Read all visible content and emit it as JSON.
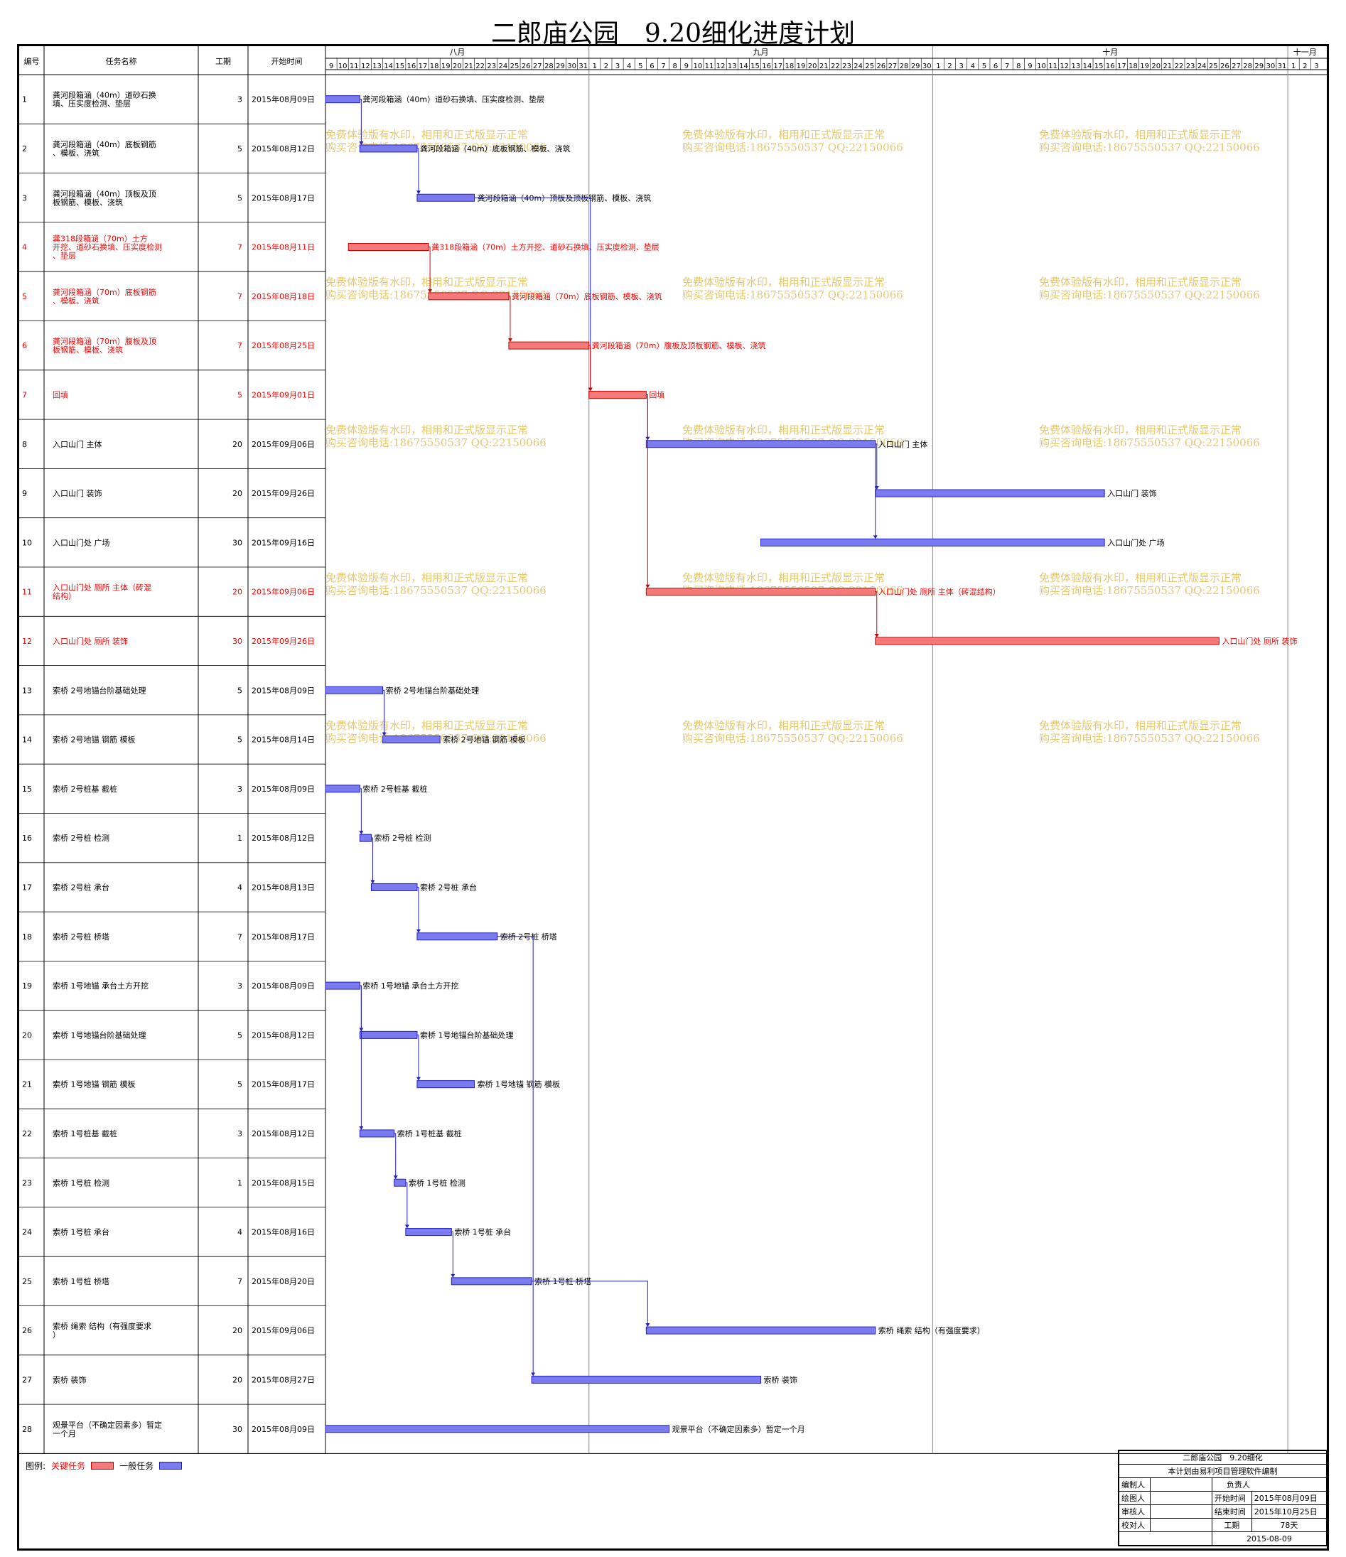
{
  "title": "二郎庙公园　9.20细化进度计划",
  "columns": {
    "id": "编号",
    "name": "任务名称",
    "duration": "工期",
    "start": "开始时间"
  },
  "months": [
    {
      "label": "八月",
      "days": [
        9,
        10,
        11,
        12,
        13,
        14,
        15,
        16,
        17,
        18,
        19,
        20,
        21,
        22,
        23,
        24,
        25,
        26,
        27,
        28,
        29,
        30,
        31
      ]
    },
    {
      "label": "九月",
      "days": [
        1,
        2,
        3,
        4,
        5,
        6,
        7,
        8,
        9,
        10,
        11,
        12,
        13,
        14,
        15,
        16,
        17,
        18,
        19,
        20,
        21,
        22,
        23,
        24,
        25,
        26,
        27,
        28,
        29,
        30
      ]
    },
    {
      "label": "十月",
      "days": [
        1,
        2,
        3,
        4,
        5,
        6,
        7,
        8,
        9,
        10,
        11,
        12,
        13,
        14,
        15,
        16,
        17,
        18,
        19,
        20,
        21,
        22,
        23,
        24,
        25,
        26,
        27,
        28,
        29,
        30,
        31
      ]
    },
    {
      "label": "十一月",
      "days": [
        1,
        2,
        3
      ]
    }
  ],
  "colors": {
    "critical_fill": "#f47a7a",
    "critical_border": "#cc0000",
    "normal_fill": "#7b7bf0",
    "normal_border": "#2020c0",
    "critical_text": "#ff0000",
    "watermark": "#e6c86e"
  },
  "chart_data": {
    "type": "gantt",
    "title": "二郎庙公园　9.20细化进度计划",
    "tasks": [
      {
        "id": "1",
        "name": "龚河段箱涵（40m）道砂石换填、压实度检测、垫层",
        "duration": 3,
        "start": "2015年08月09日",
        "critical": false,
        "label": "龚河段箱涵（40m）道砂石换填、压实度检测、垫层"
      },
      {
        "id": "2",
        "name": "龚河段箱涵（40m）底板钢筋、模板、浇筑",
        "duration": 5,
        "start": "2015年08月12日",
        "critical": false,
        "label": "龚河段箱涵（40m）底板钢筋、模板、浇筑"
      },
      {
        "id": "3",
        "name": "龚河段箱涵（40m）顶板及顶板钢筋、模板、浇筑",
        "duration": 5,
        "start": "2015年08月17日",
        "critical": false,
        "label": "龚河段箱涵（40m）顶板及顶板钢筋、模板、浇筑"
      },
      {
        "id": "4",
        "name": "龚318段箱涵（70m）土方开挖、道砂石换填、压实度检测、垫层",
        "duration": 7,
        "start": "2015年08月11日",
        "critical": true,
        "label": "龚318段箱涵（70m）土方开挖、道砂石换填、压实度检测、垫层"
      },
      {
        "id": "5",
        "name": "龚河段箱涵（70m）底板钢筋、模板、浇筑",
        "duration": 7,
        "start": "2015年08月18日",
        "critical": true,
        "label": "龚河段箱涵（70m）底板钢筋、模板、浇筑"
      },
      {
        "id": "6",
        "name": "龚河段箱涵（70m）腹板及顶板钢筋、模板、浇筑",
        "duration": 7,
        "start": "2015年08月25日",
        "critical": true,
        "label": "龚河段箱涵（70m）腹板及顶板钢筋、模板、浇筑"
      },
      {
        "id": "7",
        "name": "回填",
        "duration": 5,
        "start": "2015年09月01日",
        "critical": true,
        "label": "回填"
      },
      {
        "id": "8",
        "name": "入口山门 主体",
        "duration": 20,
        "start": "2015年09月06日",
        "critical": false,
        "label": "入口山门 主体"
      },
      {
        "id": "9",
        "name": "入口山门 装饰",
        "duration": 20,
        "start": "2015年09月26日",
        "critical": false,
        "label": "入口山门 装饰"
      },
      {
        "id": "10",
        "name": "入口山门处 广场",
        "duration": 30,
        "start": "2015年09月16日",
        "critical": false,
        "label": "入口山门处 广场"
      },
      {
        "id": "11",
        "name": "入口山门处 厕所 主体（砖混结构）",
        "duration": 20,
        "start": "2015年09月06日",
        "critical": true,
        "label": "入口山门处 厕所 主体（砖混结构）"
      },
      {
        "id": "12",
        "name": "入口山门处 厕所 装饰",
        "duration": 30,
        "start": "2015年09月26日",
        "critical": true,
        "label": "入口山门处 厕所 装饰"
      },
      {
        "id": "13",
        "name": "索桥 2号地锚台阶基础处理",
        "duration": 5,
        "start": "2015年08月09日",
        "critical": false,
        "label": "索桥 2号地锚台阶基础处理"
      },
      {
        "id": "14",
        "name": "索桥 2号地锚 钢筋 模板",
        "duration": 5,
        "start": "2015年08月14日",
        "critical": false,
        "label": "索桥 2号地锚 钢筋 模板"
      },
      {
        "id": "15",
        "name": "索桥 2号桩基 截桩",
        "duration": 3,
        "start": "2015年08月09日",
        "critical": false,
        "label": "索桥 2号桩基 截桩"
      },
      {
        "id": "16",
        "name": "索桥 2号桩 检测",
        "duration": 1,
        "start": "2015年08月12日",
        "critical": false,
        "label": "索桥 2号桩 检测"
      },
      {
        "id": "17",
        "name": "索桥 2号桩 承台",
        "duration": 4,
        "start": "2015年08月13日",
        "critical": false,
        "label": "索桥 2号桩 承台"
      },
      {
        "id": "18",
        "name": "索桥 2号桩 桥塔",
        "duration": 7,
        "start": "2015年08月17日",
        "critical": false,
        "label": "索桥 2号桩 桥塔"
      },
      {
        "id": "19",
        "name": "索桥 1号地锚 承台土方开挖",
        "duration": 3,
        "start": "2015年08月09日",
        "critical": false,
        "label": "索桥 1号地锚 承台土方开挖"
      },
      {
        "id": "20",
        "name": "索桥 1号地锚台阶基础处理",
        "duration": 5,
        "start": "2015年08月12日",
        "critical": false,
        "label": "索桥 1号地锚台阶基础处理"
      },
      {
        "id": "21",
        "name": "索桥 1号地锚 钢筋 模板",
        "duration": 5,
        "start": "2015年08月17日",
        "critical": false,
        "label": "索桥 1号地锚 钢筋 模板"
      },
      {
        "id": "22",
        "name": "索桥 1号桩基 截桩",
        "duration": 3,
        "start": "2015年08月12日",
        "critical": false,
        "label": "索桥 1号桩基 截桩"
      },
      {
        "id": "23",
        "name": "索桥 1号桩 检测",
        "duration": 1,
        "start": "2015年08月15日",
        "critical": false,
        "label": "索桥 1号桩 检测"
      },
      {
        "id": "24",
        "name": "索桥 1号桩 承台",
        "duration": 4,
        "start": "2015年08月16日",
        "critical": false,
        "label": "索桥 1号桩 承台"
      },
      {
        "id": "25",
        "name": "索桥 1号桩 桥塔",
        "duration": 7,
        "start": "2015年08月20日",
        "critical": false,
        "label": "索桥 1号桩 桥塔"
      },
      {
        "id": "26",
        "name": "索桥 绳索 结构（有强度要求）",
        "duration": 20,
        "start": "2015年09月06日",
        "critical": false,
        "label": "索桥 绳索 结构（有强度要求）"
      },
      {
        "id": "27",
        "name": "索桥 装饰",
        "duration": 20,
        "start": "2015年08月27日",
        "critical": false,
        "label": "索桥 装饰"
      },
      {
        "id": "28",
        "name": "观景平台（不确定因素多）暂定一个月",
        "duration": 30,
        "start": "2015年08月09日",
        "critical": false,
        "label": "观景平台（不确定因素多）暂定一个月"
      }
    ],
    "links": [
      [
        1,
        2
      ],
      [
        2,
        3
      ],
      [
        3,
        7
      ],
      [
        4,
        5
      ],
      [
        5,
        6
      ],
      [
        6,
        7
      ],
      [
        7,
        8
      ],
      [
        7,
        11
      ],
      [
        8,
        9
      ],
      [
        8,
        10
      ],
      [
        11,
        12
      ],
      [
        13,
        14
      ],
      [
        15,
        16
      ],
      [
        16,
        17
      ],
      [
        17,
        18
      ],
      [
        18,
        27
      ],
      [
        19,
        20
      ],
      [
        19,
        22
      ],
      [
        20,
        21
      ],
      [
        22,
        23
      ],
      [
        23,
        24
      ],
      [
        24,
        25
      ],
      [
        25,
        26
      ]
    ]
  },
  "watermark": {
    "line1": "免费体验版有水印，相用和正式版显示正常",
    "line2": "购买咨询电话:18675550537 QQ:22150066"
  },
  "legend": {
    "prefix": "图例:",
    "critical": "关键任务",
    "normal": "一般任务"
  },
  "infobox": {
    "title": "二郎庙公园　9.20细化",
    "subtitle": "本计划由易利项目管理软件编制",
    "compiler": "编制人",
    "owner": "负责人",
    "drafter": "绘图人",
    "start_label": "开始时间",
    "start_value": "2015年08月09日",
    "reviewer": "审核人",
    "end_label": "结束时间",
    "end_value": "2015年10月25日",
    "checker": "校对人",
    "duration_label": "工期",
    "duration_value": "78天",
    "date": "2015-08-09"
  }
}
